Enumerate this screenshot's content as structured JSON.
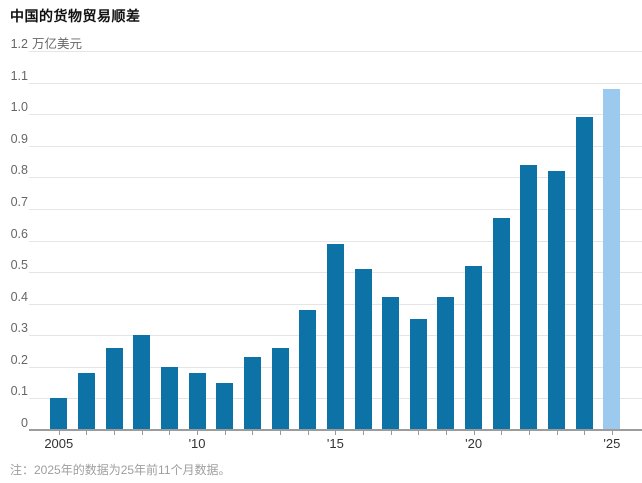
{
  "title": "中国的货物贸易顺差",
  "footnote": "注：2025年的数据为25年前11个月数据。",
  "colors": {
    "bar": "#0d72a5",
    "bar_partial": "#9bcaee",
    "gridline": "#e5e5e5",
    "axis": "#9c9c9c",
    "y_label": "#666666",
    "x_label": "#333333",
    "title": "#111111",
    "footnote": "#9e9e9e"
  },
  "chart_data": {
    "type": "bar",
    "title": "中国的货物贸易顺差",
    "unit_label": "万亿美元",
    "categories": [
      2005,
      2006,
      2007,
      2008,
      2009,
      2010,
      2011,
      2012,
      2013,
      2014,
      2015,
      2016,
      2017,
      2018,
      2019,
      2020,
      2021,
      2022,
      2023,
      2024,
      2025
    ],
    "values": [
      0.1,
      0.18,
      0.26,
      0.3,
      0.2,
      0.18,
      0.15,
      0.23,
      0.26,
      0.38,
      0.59,
      0.51,
      0.42,
      0.35,
      0.42,
      0.52,
      0.67,
      0.84,
      0.82,
      0.99,
      1.08
    ],
    "partial_year_index": 20,
    "partial_year_note": "注：2025年的数据为25年前11个月数据。",
    "ylim": [
      0,
      1.2
    ],
    "ytick_labels": [
      "1.2",
      "1.1",
      "1.0",
      "0.9",
      "0.8",
      "0.7",
      "0.6",
      "0.5",
      "0.4",
      "0.3",
      "0.2",
      "0.1",
      "0"
    ],
    "xtick_labels": [
      {
        "index": 0,
        "label": "2005"
      },
      {
        "index": 5,
        "label": "'10"
      },
      {
        "index": 10,
        "label": "'15"
      },
      {
        "index": 15,
        "label": "'20"
      },
      {
        "index": 20,
        "label": "'25"
      }
    ],
    "grid": "horizontal",
    "legend": "none"
  }
}
